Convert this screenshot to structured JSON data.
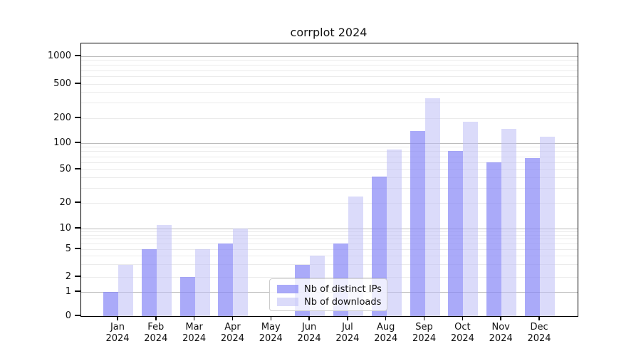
{
  "title": "corrplot 2024",
  "year": "2024",
  "legend": {
    "items": [
      {
        "label": "Nb of distinct IPs",
        "color": "#aaaaf9"
      },
      {
        "label": "Nb of downloads",
        "color": "#dbdbfa"
      }
    ]
  },
  "axes": {
    "y_tick_labels": [
      "0",
      "1",
      "2",
      "5",
      "10",
      "20",
      "50",
      "100",
      "200",
      "500",
      "1000"
    ],
    "x_tick_months": [
      "Jan",
      "Feb",
      "Mar",
      "Apr",
      "May",
      "Jun",
      "Jul",
      "Aug",
      "Sep",
      "Oct",
      "Nov",
      "Dec"
    ]
  },
  "chart_data": {
    "type": "bar",
    "title": "corrplot 2024",
    "categories": [
      "Jan 2024",
      "Feb 2024",
      "Mar 2024",
      "Apr 2024",
      "May 2024",
      "Jun 2024",
      "Jul 2024",
      "Aug 2024",
      "Sep 2024",
      "Oct 2024",
      "Nov 2024",
      "Dec 2024"
    ],
    "series": [
      {
        "name": "Nb of distinct IPs",
        "color": "#aaaaf9",
        "values": [
          1,
          5,
          2,
          6,
          0,
          3,
          6,
          41,
          140,
          82,
          60,
          68
        ]
      },
      {
        "name": "Nb of downloads",
        "color": "#dbdbfa",
        "values": [
          3,
          11,
          5,
          10,
          0,
          4,
          24,
          85,
          340,
          180,
          150,
          120
        ]
      }
    ],
    "xlabel": "",
    "ylabel": "",
    "yscale": "symlog",
    "yticks": [
      0,
      1,
      2,
      5,
      10,
      20,
      50,
      100,
      200,
      500,
      1000
    ],
    "ylim": [
      0,
      1400
    ],
    "grid": "both",
    "legend_position": "lower center inside"
  }
}
